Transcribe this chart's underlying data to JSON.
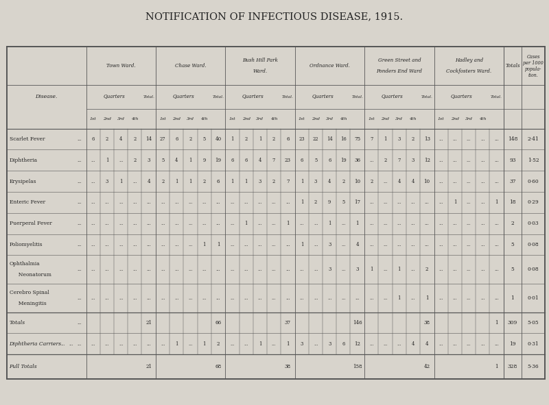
{
  "title": "NOTIFICATION OF INFECTIOUS DISEASE, 1915.",
  "bg_color": "#d8d4cc",
  "diseases": [
    "Scarlet Fever",
    "Diphtheria",
    "Erysipelas",
    "Enteric Fever",
    "Puerperal Fever",
    "Poliomyelitis",
    "Ophthalmia\n  Neonatorum",
    "Cerebro Spinal\n  Meningitis"
  ],
  "ward_names": [
    "Town Ward.",
    "Chase Ward.",
    "Bush Hill Park\nWard.",
    "Ordnance Ward.",
    "Green Street and\nPonders End Ward",
    "Hadley and\nCockfosters Ward."
  ],
  "quarter_labels": [
    "1st",
    "2nd",
    "3rd",
    "4th"
  ],
  "ward_data": {
    "Town Ward.": {
      "Scarlet Fever": [
        "6",
        "2",
        "4",
        "2",
        "14"
      ],
      "Diphtheria": [
        "...",
        "1",
        "...",
        "2",
        "3"
      ],
      "Erysipelas": [
        "...",
        "3",
        "1",
        "...",
        "4"
      ],
      "Enteric Fever": [
        "...",
        "...",
        "...",
        "...",
        "..."
      ],
      "Puerperal Fever": [
        "...",
        "...",
        "...",
        "...",
        "..."
      ],
      "Poliomyelitis": [
        "...",
        "...",
        "...",
        "...",
        "..."
      ],
      "Ophthalmia\n  Neonatorum": [
        "...",
        "...",
        "...",
        "...",
        "..."
      ],
      "Cerebro Spinal\n  Meningitis": [
        "...",
        "...",
        "...",
        "...",
        "..."
      ],
      "Totals": [
        "",
        "",
        "",
        "",
        "21"
      ],
      "Diphtheria Carriers": [
        "...",
        "...",
        "...",
        "...",
        "..."
      ],
      "Full Totals": [
        "",
        "",
        "",
        "",
        "21"
      ]
    },
    "Chase Ward.": {
      "Scarlet Fever": [
        "27",
        "6",
        "2",
        "5",
        "40"
      ],
      "Diphtheria": [
        "5",
        "4",
        "1",
        "9",
        "19"
      ],
      "Erysipelas": [
        "2",
        "1",
        "1",
        "2",
        "6"
      ],
      "Enteric Fever": [
        "...",
        "...",
        "...",
        "...",
        "..."
      ],
      "Puerperal Fever": [
        "...",
        "...",
        "...",
        "...",
        "..."
      ],
      "Poliomyelitis": [
        "...",
        "...",
        "...",
        "1",
        "1"
      ],
      "Ophthalmia\n  Neonatorum": [
        "...",
        "...",
        "...",
        "...",
        "..."
      ],
      "Cerebro Spinal\n  Meningitis": [
        "...",
        "...",
        "...",
        "...",
        "..."
      ],
      "Totals": [
        "",
        "",
        "",
        "",
        "66"
      ],
      "Diphtheria Carriers": [
        "...",
        "1",
        "...",
        "1",
        "2"
      ],
      "Full Totals": [
        "",
        "",
        "",
        "",
        "68"
      ]
    },
    "Bush Hill Park\nWard.": {
      "Scarlet Fever": [
        "1",
        "2",
        "1",
        "2",
        "6"
      ],
      "Diphtheria": [
        "6",
        "6",
        "4",
        "7",
        "23"
      ],
      "Erysipelas": [
        "1",
        "1",
        "3",
        "2",
        "7"
      ],
      "Enteric Fever": [
        "...",
        "...",
        "...",
        "...",
        "..."
      ],
      "Puerperal Fever": [
        "...",
        "1",
        "...",
        "...",
        "1"
      ],
      "Poliomyelitis": [
        "...",
        "...",
        "...",
        "...",
        "..."
      ],
      "Ophthalmia\n  Neonatorum": [
        "...",
        "...",
        "...",
        "...",
        "..."
      ],
      "Cerebro Spinal\n  Meningitis": [
        "...",
        "...",
        "...",
        "...",
        "..."
      ],
      "Totals": [
        "",
        "",
        "",
        "",
        "37"
      ],
      "Diphtheria Carriers": [
        "...",
        "...",
        "1",
        "...",
        "1"
      ],
      "Full Totals": [
        "",
        "",
        "",
        "",
        "38"
      ]
    },
    "Ordnance Ward.": {
      "Scarlet Fever": [
        "23",
        "22",
        "14",
        "16",
        "75"
      ],
      "Diphtheria": [
        "6",
        "5",
        "6",
        "19",
        "36"
      ],
      "Erysipelas": [
        "1",
        "3",
        "4",
        "2",
        "10"
      ],
      "Enteric Fever": [
        "1",
        "2",
        "9",
        "5",
        "17"
      ],
      "Puerperal Fever": [
        "...",
        "...",
        "1",
        "...",
        "1"
      ],
      "Poliomyelitis": [
        "1",
        "...",
        "3",
        "...",
        "4"
      ],
      "Ophthalmia\n  Neonatorum": [
        "...",
        "...",
        "3",
        "...",
        "3"
      ],
      "Cerebro Spinal\n  Meningitis": [
        "...",
        "...",
        "...",
        "...",
        "..."
      ],
      "Totals": [
        "",
        "",
        "",
        "",
        "146"
      ],
      "Diphtheria Carriers": [
        "3",
        "...",
        "3",
        "6",
        "12"
      ],
      "Full Totals": [
        "",
        "",
        "",
        "",
        "158"
      ]
    },
    "Green Street and\nPonders End Ward": {
      "Scarlet Fever": [
        "7",
        "1",
        "3",
        "2",
        "13"
      ],
      "Diphtheria": [
        "...",
        "2",
        "7",
        "3",
        "12"
      ],
      "Erysipelas": [
        "2",
        "...",
        "4",
        "4",
        "10"
      ],
      "Enteric Fever": [
        "...",
        "...",
        "...",
        "...",
        "..."
      ],
      "Puerperal Fever": [
        "...",
        "...",
        "...",
        "...",
        "..."
      ],
      "Poliomyelitis": [
        "...",
        "...",
        "...",
        "...",
        "..."
      ],
      "Ophthalmia\n  Neonatorum": [
        "1",
        "...",
        "1",
        "...",
        "2"
      ],
      "Cerebro Spinal\n  Meningitis": [
        "...",
        "...",
        "1",
        "...",
        "1"
      ],
      "Totals": [
        "",
        "",
        "",
        "",
        "38"
      ],
      "Diphtheria Carriers": [
        "...",
        "...",
        "...",
        "4",
        "4"
      ],
      "Full Totals": [
        "",
        "",
        "",
        "",
        "42"
      ]
    },
    "Hadley and\nCockfosters Ward.": {
      "Scarlet Fever": [
        "...",
        "...",
        "...",
        "...",
        "..."
      ],
      "Diphtheria": [
        "...",
        "...",
        "...",
        "...",
        "..."
      ],
      "Erysipelas": [
        "...",
        "...",
        "...",
        "...",
        "..."
      ],
      "Enteric Fever": [
        "...",
        "1",
        "...",
        "...",
        "1"
      ],
      "Puerperal Fever": [
        "...",
        "...",
        "...",
        "...",
        "..."
      ],
      "Poliomyelitis": [
        "...",
        "...",
        "...",
        "...",
        "..."
      ],
      "Ophthalmia\n  Neonatorum": [
        "...",
        "...",
        "...",
        "...",
        "..."
      ],
      "Cerebro Spinal\n  Meningitis": [
        "...",
        "...",
        "...",
        "...",
        "..."
      ],
      "Totals": [
        "",
        "",
        "",
        "",
        "1"
      ],
      "Diphtheria Carriers": [
        "...",
        "...",
        "...",
        "...",
        "..."
      ],
      "Full Totals": [
        "",
        "",
        "",
        "",
        "1"
      ]
    }
  },
  "grand_totals": {
    "Scarlet Fever": [
      "148",
      "2·41"
    ],
    "Diphtheria": [
      "93",
      "1·52"
    ],
    "Erysipelas": [
      "37",
      "0·60"
    ],
    "Enteric Fever": [
      "18",
      "0·29"
    ],
    "Puerperal Fever": [
      "2",
      "0·03"
    ],
    "Poliomyelitis": [
      "5",
      "0·08"
    ],
    "Ophthalmia\n  Neonatorum": [
      "5",
      "0·08"
    ],
    "Cerebro Spinal\n  Meningitis": [
      "1",
      "0·01"
    ],
    "Totals": [
      "309",
      "5·05"
    ],
    "Diphtheria Carriers": [
      "19",
      "0·31"
    ],
    "Full Totals": [
      "328",
      "5·36"
    ]
  }
}
